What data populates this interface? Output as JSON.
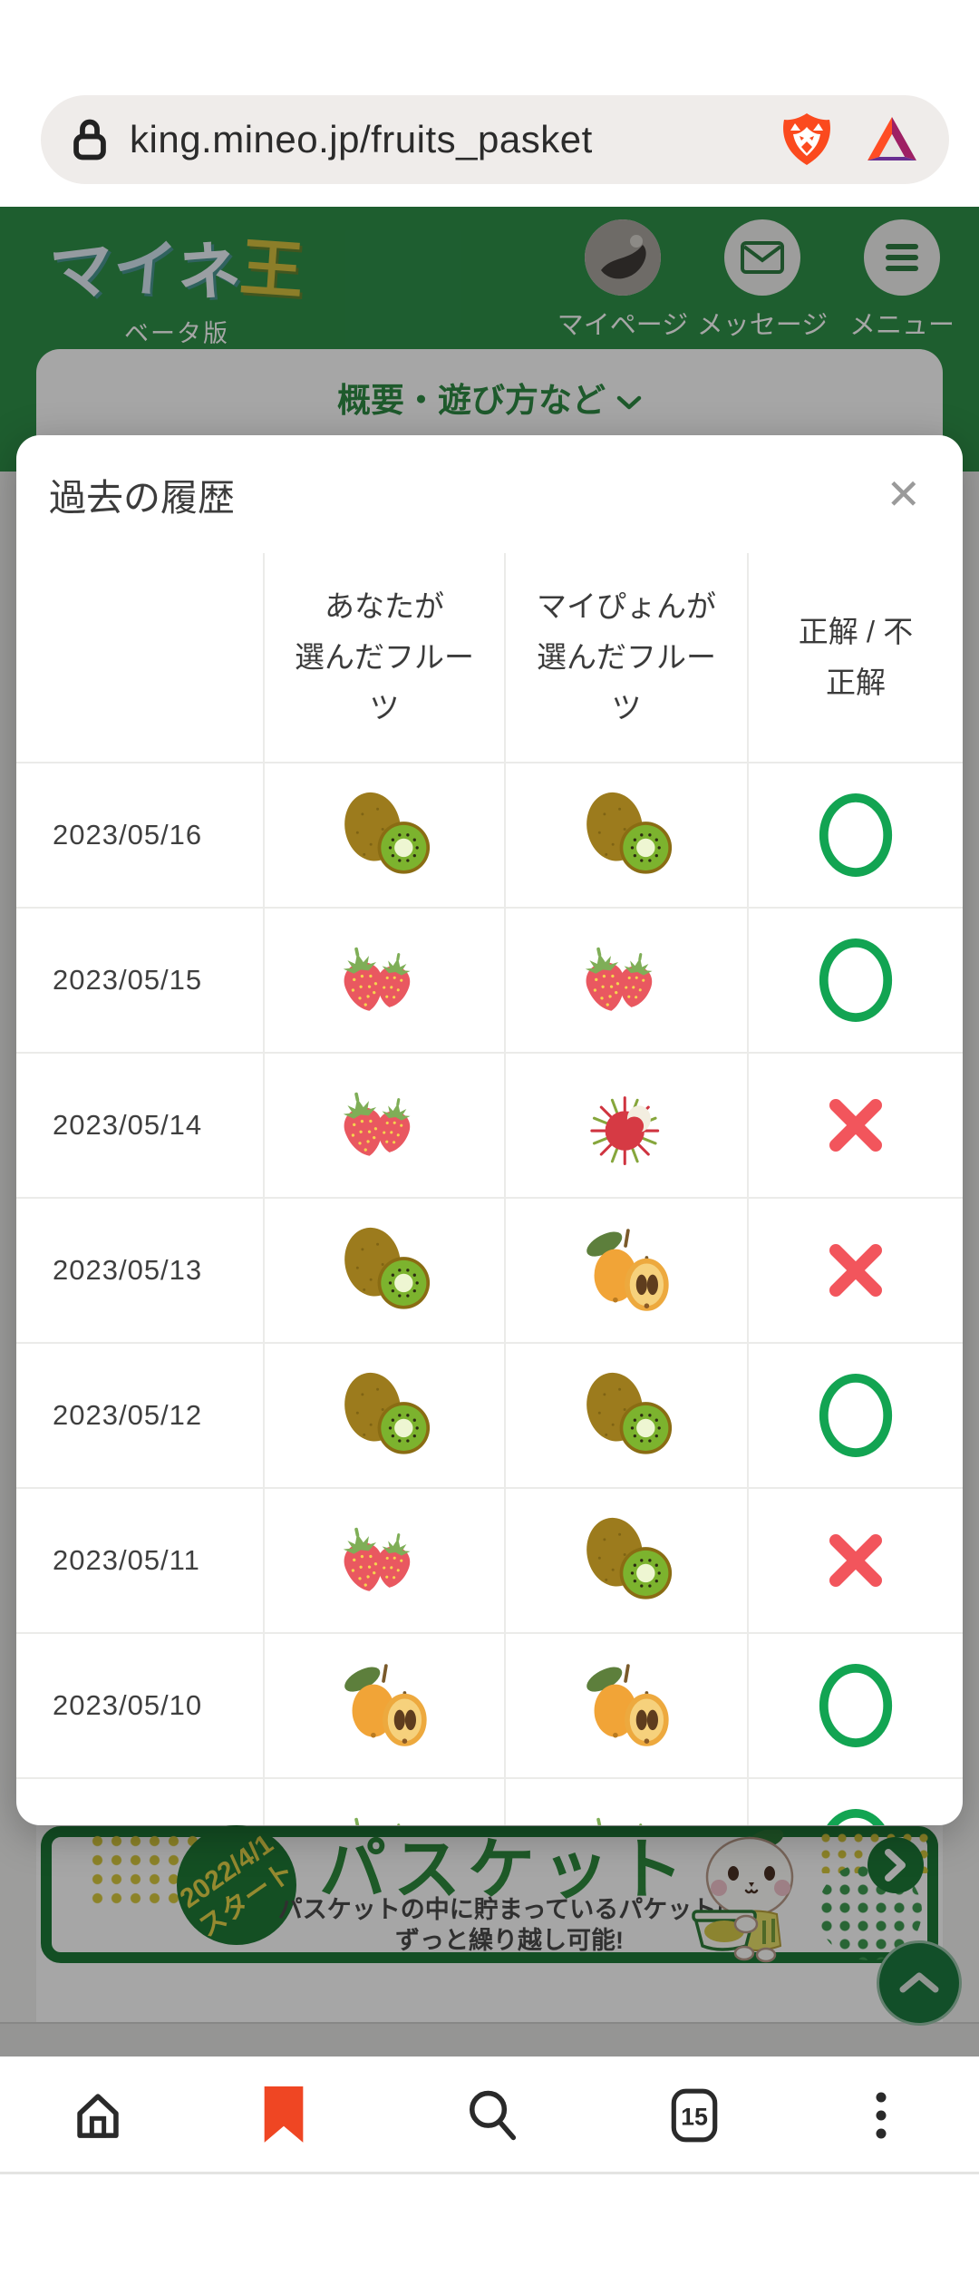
{
  "browser": {
    "url": "king.mineo.jp/fruits_pasket",
    "tab_count": "15"
  },
  "site_header": {
    "logo_text": "マイネ王",
    "logo_sub": "ベータ版",
    "nav": [
      {
        "label": "マイページ",
        "icon": "avatar"
      },
      {
        "label": "メッセージ",
        "icon": "envelope"
      },
      {
        "label": "メニュー",
        "icon": "hamburger"
      }
    ]
  },
  "page": {
    "overview_link": "概要・遊び方など",
    "banner": {
      "start_badge_line1": "2022/4/1",
      "start_badge_line2": "スタート",
      "title": "パスケット",
      "desc_line1": "パスケットの中に貯まっているパケットは",
      "desc_line2": "ずっと繰り越し可能!"
    }
  },
  "modal": {
    "title": "過去の履歴",
    "close_glyph": "✕",
    "table": {
      "headers": [
        [
          ""
        ],
        [
          "あなたが",
          "選んだフルー",
          "ツ"
        ],
        [
          "マイぴょんが",
          "選んだフルー",
          "ツ"
        ],
        [
          "正解 / 不",
          "正解"
        ]
      ],
      "rows": [
        {
          "date": "2023/05/16",
          "you": "kiwi",
          "maipyon": "kiwi",
          "result": "correct"
        },
        {
          "date": "2023/05/15",
          "you": "strawberry",
          "maipyon": "strawberry",
          "result": "correct"
        },
        {
          "date": "2023/05/14",
          "you": "strawberry",
          "maipyon": "rambutan",
          "result": "incorrect"
        },
        {
          "date": "2023/05/13",
          "you": "kiwi",
          "maipyon": "loquat",
          "result": "incorrect"
        },
        {
          "date": "2023/05/12",
          "you": "kiwi",
          "maipyon": "kiwi",
          "result": "correct"
        },
        {
          "date": "2023/05/11",
          "you": "strawberry",
          "maipyon": "kiwi",
          "result": "incorrect"
        },
        {
          "date": "2023/05/10",
          "you": "loquat",
          "maipyon": "loquat",
          "result": "correct"
        },
        {
          "date": "",
          "you": "strawberry",
          "maipyon": "strawberry",
          "result": "correct"
        }
      ]
    }
  },
  "colors": {
    "header_green": "#2e9149",
    "link_green": "#2e8b44",
    "ring_green": "#12a452",
    "cross_red": "#f2555c",
    "bookmark_orange": "#ef4623",
    "brave_orange": "#fb4a1e",
    "banner_border_green": "#1e7a38"
  }
}
